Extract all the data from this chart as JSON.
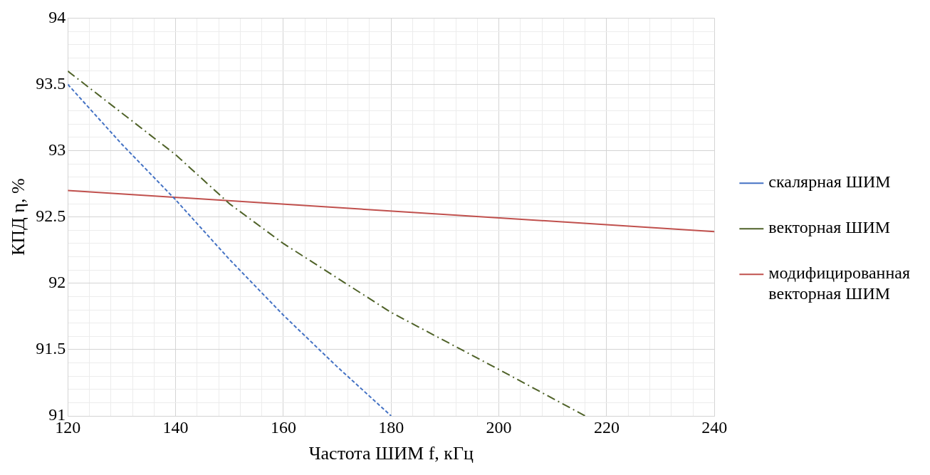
{
  "chart_data": {
    "type": "line",
    "xlabel": "Частота ШИМ f, кГц",
    "ylabel": "КПД η, %",
    "xlim": [
      120,
      240
    ],
    "ylim": [
      91,
      94
    ],
    "xticks": [
      120,
      {
        "value": 124,
        "label": null
      },
      {
        "value": 128,
        "label": null
      },
      {
        "value": 132,
        "label": null
      },
      {
        "value": 136,
        "label": null
      },
      140,
      {
        "value": 144,
        "label": null
      },
      {
        "value": 148,
        "label": null
      },
      {
        "value": 152,
        "label": null
      },
      {
        "value": 156,
        "label": null
      },
      160,
      {
        "value": 164,
        "label": null
      },
      {
        "value": 168,
        "label": null
      },
      {
        "value": 172,
        "label": null
      },
      {
        "value": 176,
        "label": null
      },
      180,
      {
        "value": 184,
        "label": null
      },
      {
        "value": 188,
        "label": null
      },
      {
        "value": 192,
        "label": null
      },
      {
        "value": 196,
        "label": null
      },
      200,
      {
        "value": 204,
        "label": null
      },
      {
        "value": 208,
        "label": null
      },
      {
        "value": 212,
        "label": null
      },
      {
        "value": 216,
        "label": null
      },
      220,
      {
        "value": 224,
        "label": null
      },
      {
        "value": 228,
        "label": null
      },
      {
        "value": 232,
        "label": null
      },
      {
        "value": 236,
        "label": null
      },
      240
    ],
    "yticks": [
      91,
      {
        "value": 91.1,
        "label": null
      },
      {
        "value": 91.2,
        "label": null
      },
      {
        "value": 91.3,
        "label": null
      },
      {
        "value": 91.4,
        "label": null
      },
      91.5,
      {
        "value": 91.6,
        "label": null
      },
      {
        "value": 91.7,
        "label": null
      },
      {
        "value": 91.8,
        "label": null
      },
      {
        "value": 91.9,
        "label": null
      },
      92,
      {
        "value": 92.1,
        "label": null
      },
      {
        "value": 92.2,
        "label": null
      },
      {
        "value": 92.3,
        "label": null
      },
      {
        "value": 92.4,
        "label": null
      },
      92.5,
      {
        "value": 92.6,
        "label": null
      },
      {
        "value": 92.7,
        "label": null
      },
      {
        "value": 92.8,
        "label": null
      },
      {
        "value": 92.9,
        "label": null
      },
      93,
      {
        "value": 93.1,
        "label": null
      },
      {
        "value": 93.2,
        "label": null
      },
      {
        "value": 93.3,
        "label": null
      },
      {
        "value": 93.4,
        "label": null
      },
      93.5,
      {
        "value": 93.6,
        "label": null
      },
      {
        "value": 93.7,
        "label": null
      },
      {
        "value": 93.8,
        "label": null
      },
      {
        "value": 93.9,
        "label": null
      },
      94
    ],
    "grid": true,
    "legend": "right",
    "marker": "none",
    "series": [
      {
        "name": "скалярная ШИМ",
        "color": "#4472c4",
        "line_style": "dashed",
        "x": [
          120,
          130,
          140,
          150,
          160,
          170,
          180
        ],
        "values": [
          93.5,
          93.05,
          92.63,
          92.18,
          91.76,
          91.37,
          91.0
        ]
      },
      {
        "name": "векторная ШИМ",
        "color": "#4f6228",
        "line_style": "dashdot",
        "x": [
          120,
          140,
          150,
          160,
          180,
          200,
          216
        ],
        "values": [
          93.6,
          92.97,
          92.6,
          92.3,
          91.78,
          91.35,
          91.0
        ]
      },
      {
        "name": "модифицированная векторная ШИМ",
        "color": "#c0504d",
        "line_style": "solid",
        "x": [
          120,
          240
        ],
        "values": [
          92.7,
          92.39
        ]
      }
    ]
  }
}
